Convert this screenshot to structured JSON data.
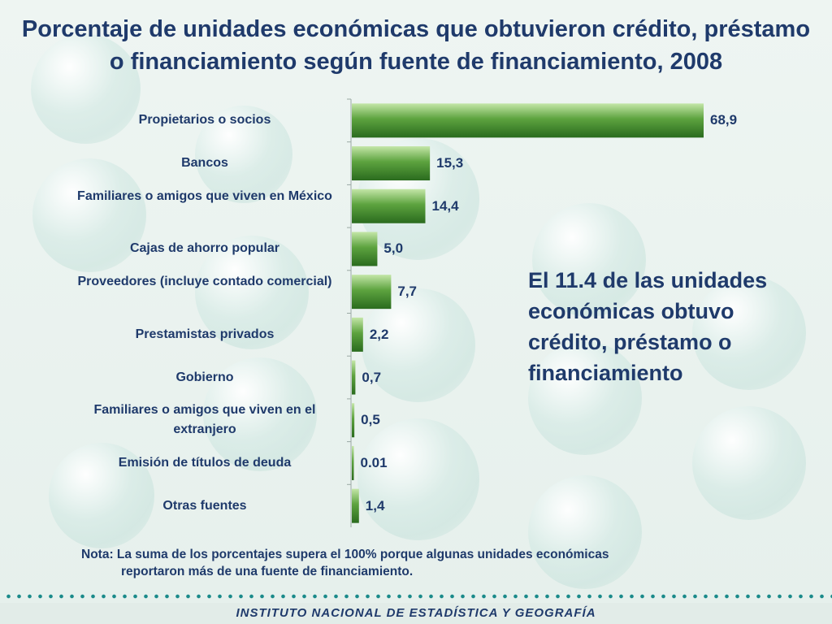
{
  "chart_data": {
    "type": "bar",
    "orientation": "horizontal",
    "title": "Porcentaje de unidades económicas que obtuvieron  crédito, préstamo\no financiamiento según fuente de financiamiento, 2008",
    "categories": [
      "Propietarios o socios",
      "Bancos",
      "Familiares o amigos que viven en México",
      "Cajas de ahorro popular",
      "Proveedores (incluye contado comercial)",
      "Prestamistas privados",
      "Gobierno",
      "Familiares o amigos que viven en el extranjero",
      "Emisión de títulos de deuda",
      "Otras fuentes"
    ],
    "values": [
      68.9,
      15.3,
      14.4,
      5.0,
      7.7,
      2.2,
      0.7,
      0.5,
      0.01,
      1.4
    ],
    "value_labels": [
      "68,9",
      "15,3",
      "14,4",
      "5,0",
      "7,7",
      "2,2",
      "0,7",
      "0,5",
      "0.01",
      "1,4"
    ],
    "xlim": [
      0,
      70
    ],
    "grid": false,
    "legend": "none",
    "bar_color": "#3a8a2a"
  },
  "callout": "El 11.4 de las unidades económicas obtuvo crédito, préstamo o financiamiento",
  "note": {
    "line1": "Nota: La suma de los porcentajes supera el 100% porque algunas unidades económicas",
    "line2": "reportaron más de una fuente de financiamiento."
  },
  "footer": "INSTITUTO NACIONAL  DE ESTADÍSTICA Y GEOGRAFÍA"
}
